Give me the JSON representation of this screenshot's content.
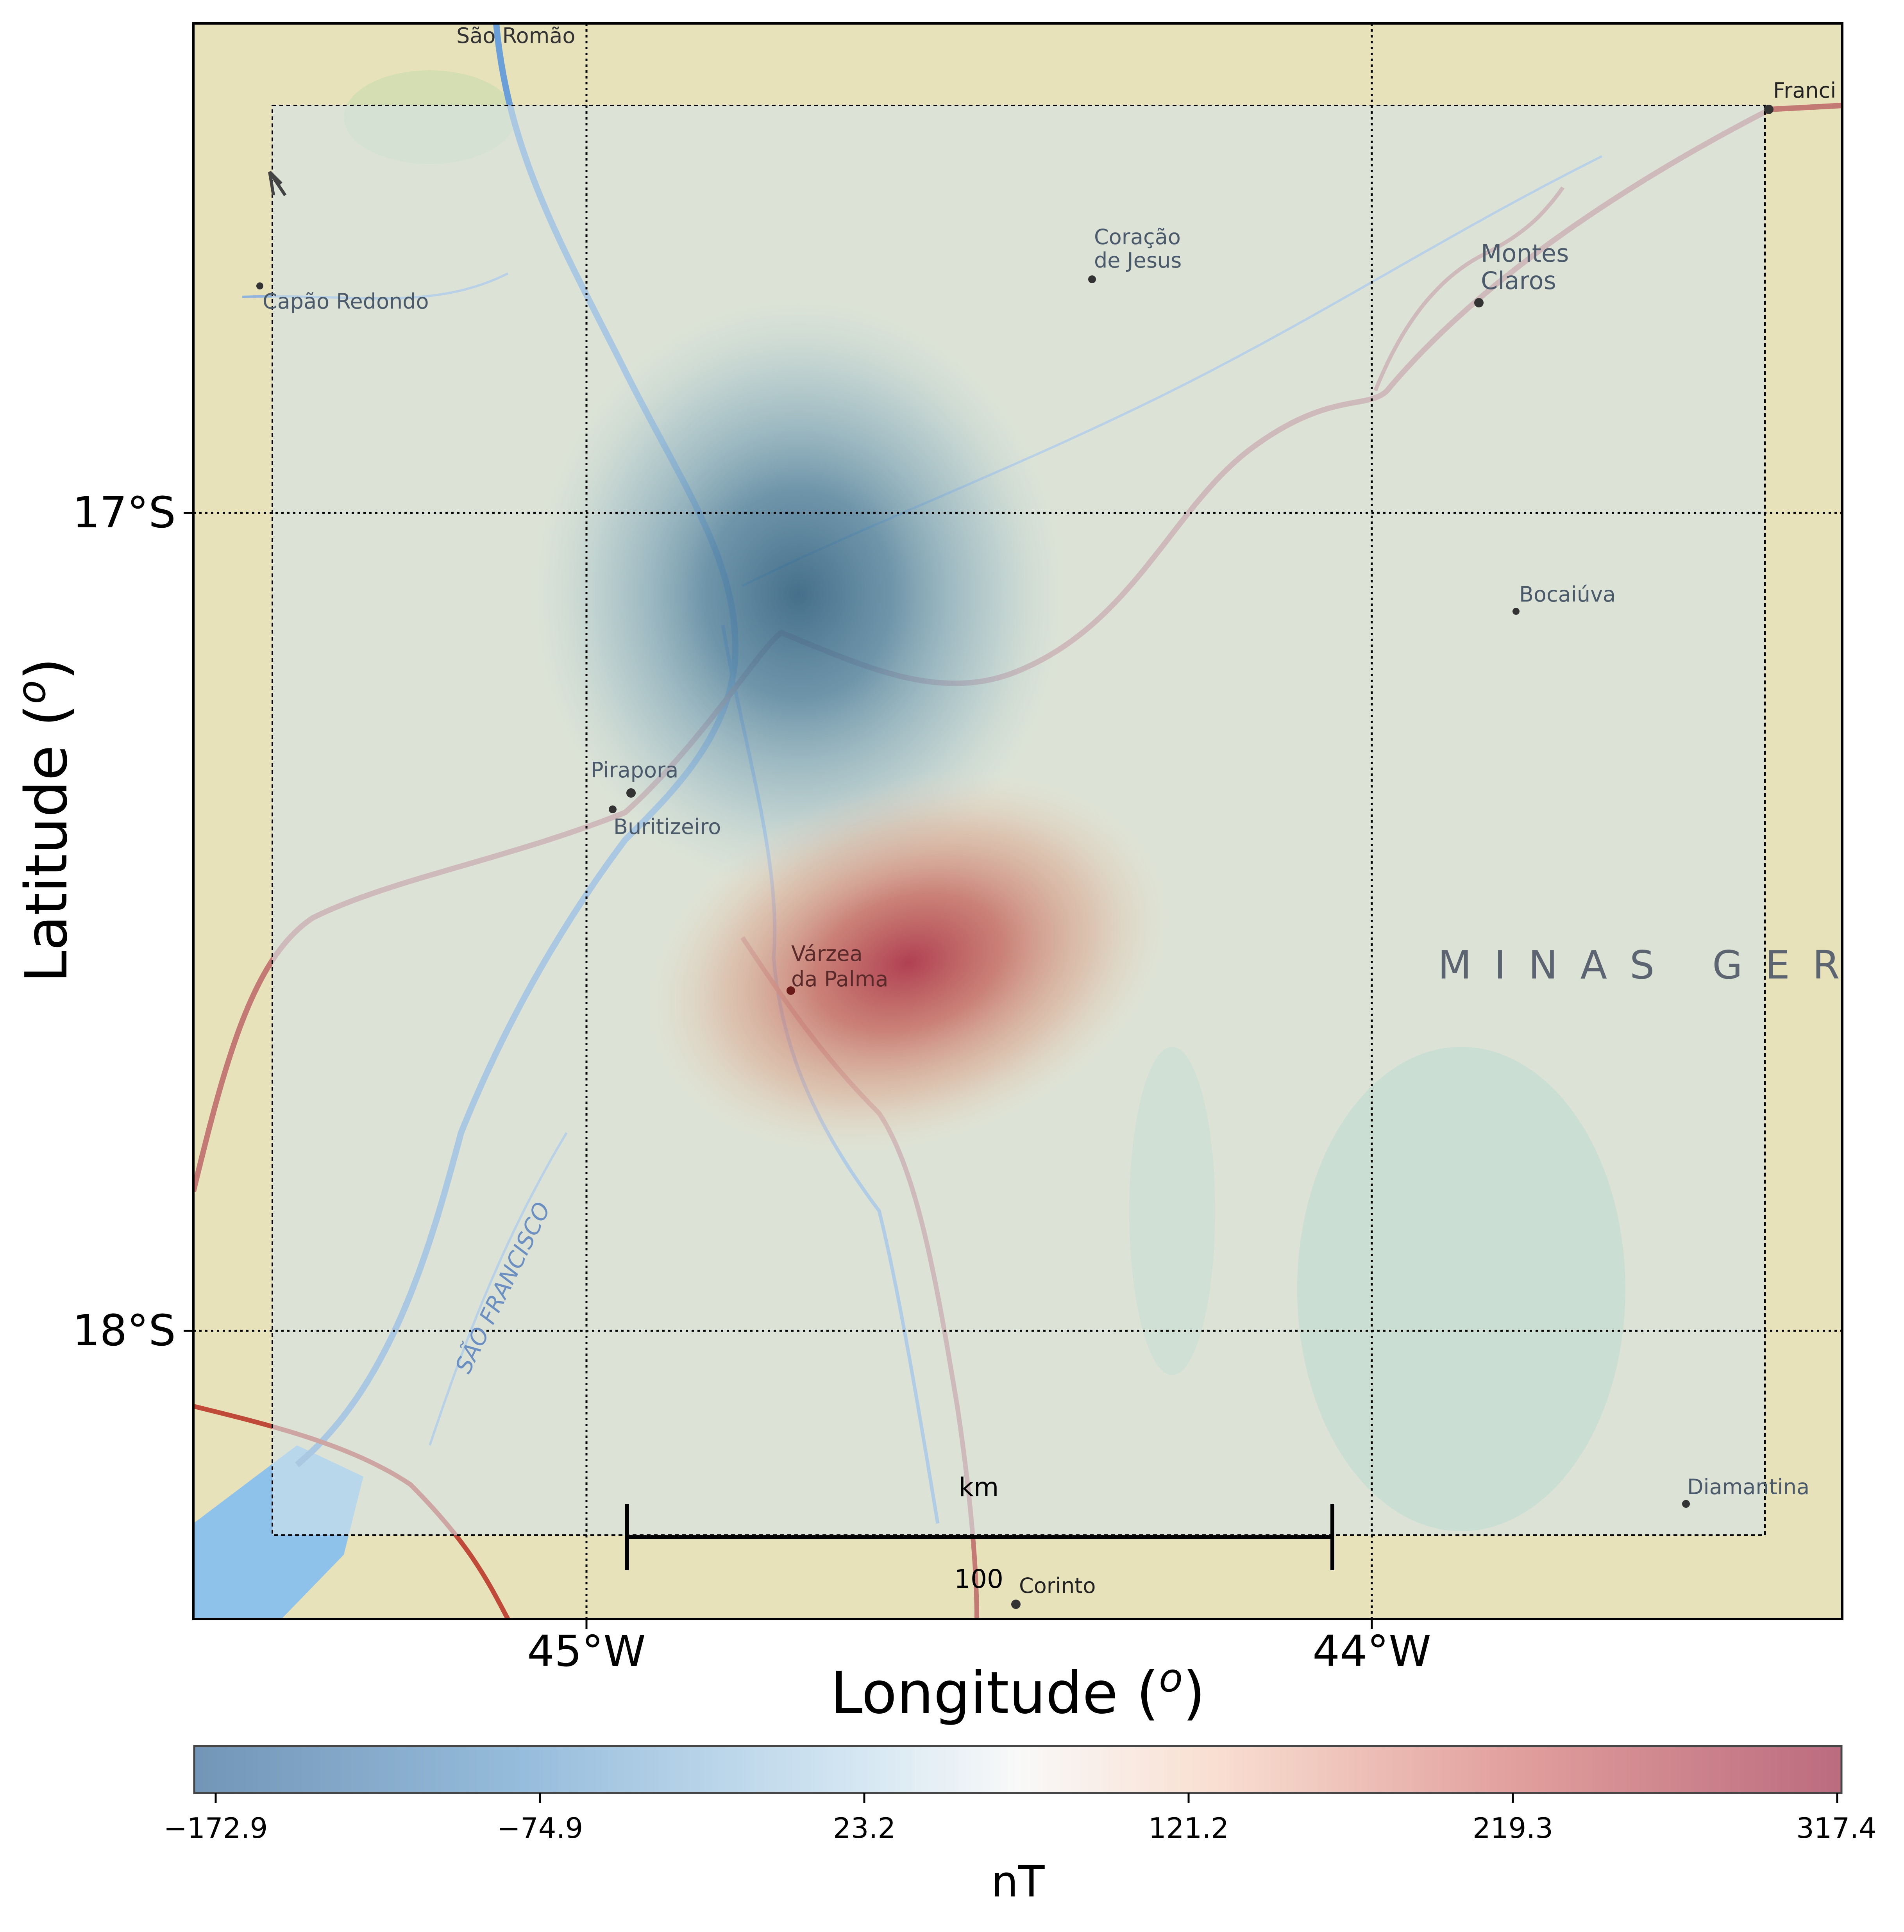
{
  "map": {
    "place_labels": [
      "São Romão",
      "Capão Redondo",
      "Coração",
      "de Jesus",
      "Montes",
      "Claros",
      "Franci",
      "Bocaiúva",
      "Pirapora",
      "Buritizeiro",
      "Várzea",
      "da Palma",
      "MINAS GER",
      "SÃO FRANCISCO",
      "Diamantina",
      "Corinto"
    ],
    "axes": {
      "xlabel": "Longitude",
      "xlabel_sup": "o",
      "ylabel": "Latitude",
      "ylabel_sup": "o",
      "xticks": [
        "45°W",
        "44°W"
      ],
      "yticks": [
        "17°S",
        "18°S"
      ]
    },
    "scalebar": {
      "unit": "km",
      "value": "100"
    },
    "anomaly": {
      "negative_center": {
        "lon": -44.73,
        "lat": -17.1
      },
      "positive_center": {
        "lon": -44.59,
        "lat": -17.55
      }
    },
    "colors": {
      "land": "#e7e2b9",
      "water": "#7fb1e3",
      "road": "#c47a74",
      "grid": "#000000"
    }
  },
  "colorbar": {
    "label": "nT",
    "ticks": [
      "−172.9",
      "−74.9",
      "23.2",
      "121.2",
      "219.3",
      "317.4"
    ],
    "min": -172.9,
    "max": 317.4,
    "colormap": "RdBu_r"
  }
}
